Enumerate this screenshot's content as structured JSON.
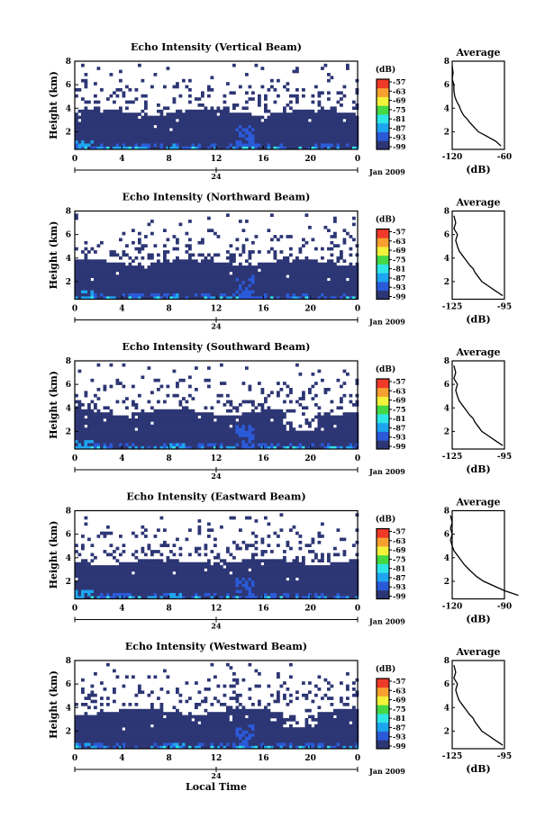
{
  "figure": {
    "xlabel": "Local Time",
    "date_label": "Jan 2009",
    "day_label": "24",
    "colorbar_unit": "(dB)",
    "avg_title": "Average",
    "avg_xlabel": "(dB)"
  },
  "colors": {
    "white": "#ffffff",
    "navy": "#2d3674",
    "blue": "#2a5ad8",
    "azure": "#1ea5f0",
    "cyan": "#2fe6e6",
    "green": "#45d845",
    "yellow": "#f2f23a",
    "orange": "#f7a030",
    "red": "#ef3a2a"
  },
  "chart_data": [
    {
      "type": "heatmap",
      "title": "Echo Intensity (Vertical Beam)",
      "ylabel": "Height (km)",
      "xlim": [
        0,
        24
      ],
      "ylim": [
        0.5,
        8
      ],
      "xticks": [
        "0",
        "4",
        "8",
        "12",
        "16",
        "20",
        "0"
      ],
      "yticks": [
        "2",
        "4",
        "6",
        "8"
      ],
      "colorbar_ticks": [
        "-57",
        "-63",
        "-69",
        "-75",
        "-81",
        "-87",
        "-93",
        "-99"
      ],
      "profile": {
        "xlim": [
          -120,
          -60
        ],
        "xticks": [
          "-120",
          "-60"
        ],
        "yticks": [
          "2",
          "4",
          "6",
          "8"
        ],
        "x": [
          -64,
          -70,
          -80,
          -90,
          -95,
          -100,
          -103,
          -107,
          -110,
          -112,
          -115,
          -117,
          -118,
          -118,
          -120,
          -119,
          -120
        ],
        "y": [
          0.8,
          1.2,
          1.6,
          2.0,
          2.4,
          2.8,
          3.1,
          3.4,
          3.8,
          4.2,
          4.6,
          5.0,
          5.5,
          6.0,
          6.5,
          7.0,
          7.6
        ]
      }
    },
    {
      "type": "heatmap",
      "title": "Echo Intensity (Northward Beam)",
      "ylabel": "Height (km)",
      "xlim": [
        0,
        24
      ],
      "ylim": [
        0.5,
        8
      ],
      "xticks": [
        "0",
        "4",
        "8",
        "12",
        "16",
        "20",
        "0"
      ],
      "yticks": [
        "2",
        "4",
        "6",
        "8"
      ],
      "colorbar_ticks": [
        "-57",
        "-63",
        "-69",
        "-75",
        "-81",
        "-87",
        "-93",
        "-99"
      ],
      "profile": {
        "xlim": [
          -125,
          -95
        ],
        "xticks": [
          "-125",
          "-95"
        ],
        "yticks": [
          "2",
          "4",
          "6",
          "8"
        ],
        "x": [
          -96,
          -100,
          -104,
          -108,
          -110,
          -112,
          -113,
          -115,
          -117,
          -119,
          -121,
          -122,
          -123,
          -122,
          -124,
          -123,
          -124
        ],
        "y": [
          0.8,
          1.2,
          1.6,
          2.0,
          2.4,
          2.8,
          3.1,
          3.4,
          3.8,
          4.2,
          4.6,
          5.0,
          5.5,
          6.0,
          6.5,
          7.0,
          7.6
        ]
      }
    },
    {
      "type": "heatmap",
      "title": "Echo Intensity (Southward Beam)",
      "ylabel": "Height (km)",
      "xlim": [
        0,
        24
      ],
      "ylim": [
        0.5,
        8
      ],
      "xticks": [
        "0",
        "4",
        "8",
        "12",
        "16",
        "20",
        "0"
      ],
      "yticks": [
        "2",
        "4",
        "6",
        "8"
      ],
      "colorbar_ticks": [
        "-57",
        "-63",
        "-69",
        "-75",
        "-81",
        "-87",
        "-93",
        "-99"
      ],
      "profile": {
        "xlim": [
          -125,
          -95
        ],
        "xticks": [
          "-125",
          "-95"
        ],
        "yticks": [
          "2",
          "4",
          "6",
          "8"
        ],
        "x": [
          -96,
          -100,
          -104,
          -108,
          -110,
          -112,
          -113,
          -115,
          -117,
          -119,
          -121,
          -122,
          -123,
          -122,
          -124,
          -123,
          -124
        ],
        "y": [
          0.8,
          1.2,
          1.6,
          2.0,
          2.4,
          2.8,
          3.1,
          3.4,
          3.8,
          4.2,
          4.6,
          5.0,
          5.5,
          6.0,
          6.5,
          7.0,
          7.6
        ]
      }
    },
    {
      "type": "heatmap",
      "title": "Echo Intensity (Eastward Beam)",
      "ylabel": "Height (km)",
      "xlim": [
        0,
        24
      ],
      "ylim": [
        0.5,
        8
      ],
      "xticks": [
        "0",
        "4",
        "8",
        "12",
        "16",
        "20",
        "0"
      ],
      "yticks": [
        "2",
        "4",
        "6",
        "8"
      ],
      "colorbar_ticks": [
        "-57",
        "-63",
        "-69",
        "-75",
        "-81",
        "-87",
        "-93",
        "-99"
      ],
      "profile": {
        "xlim": [
          -120,
          -90
        ],
        "xticks": [
          "-120",
          "-90"
        ],
        "yticks": [
          "2",
          "4",
          "6",
          "8"
        ],
        "x": [
          -82,
          -90,
          -96,
          -102,
          -106,
          -109,
          -111,
          -113,
          -115,
          -117,
          -119,
          -120,
          -121,
          -120,
          -121,
          -120,
          -121
        ],
        "y": [
          0.8,
          1.2,
          1.6,
          2.0,
          2.4,
          2.8,
          3.1,
          3.4,
          3.8,
          4.2,
          4.6,
          5.0,
          5.5,
          6.0,
          6.5,
          7.0,
          7.6
        ]
      }
    },
    {
      "type": "heatmap",
      "title": "Echo Intensity (Westward Beam)",
      "ylabel": "Height (km)",
      "xlim": [
        0,
        24
      ],
      "ylim": [
        0.5,
        8
      ],
      "xticks": [
        "0",
        "4",
        "8",
        "12",
        "16",
        "20",
        "0"
      ],
      "yticks": [
        "2",
        "4",
        "6",
        "8"
      ],
      "colorbar_ticks": [
        "-57",
        "-63",
        "-69",
        "-75",
        "-81",
        "-87",
        "-93",
        "-99"
      ],
      "profile": {
        "xlim": [
          -125,
          -95
        ],
        "xticks": [
          "-125",
          "-95"
        ],
        "yticks": [
          "2",
          "4",
          "6",
          "8"
        ],
        "x": [
          -96,
          -100,
          -104,
          -108,
          -110,
          -112,
          -113,
          -115,
          -117,
          -119,
          -121,
          -122,
          -123,
          -122,
          -124,
          -123,
          -124
        ],
        "y": [
          0.8,
          1.2,
          1.6,
          2.0,
          2.4,
          2.8,
          3.1,
          3.4,
          3.8,
          4.2,
          4.6,
          5.0,
          5.5,
          6.0,
          6.5,
          7.0,
          7.6
        ]
      }
    }
  ]
}
